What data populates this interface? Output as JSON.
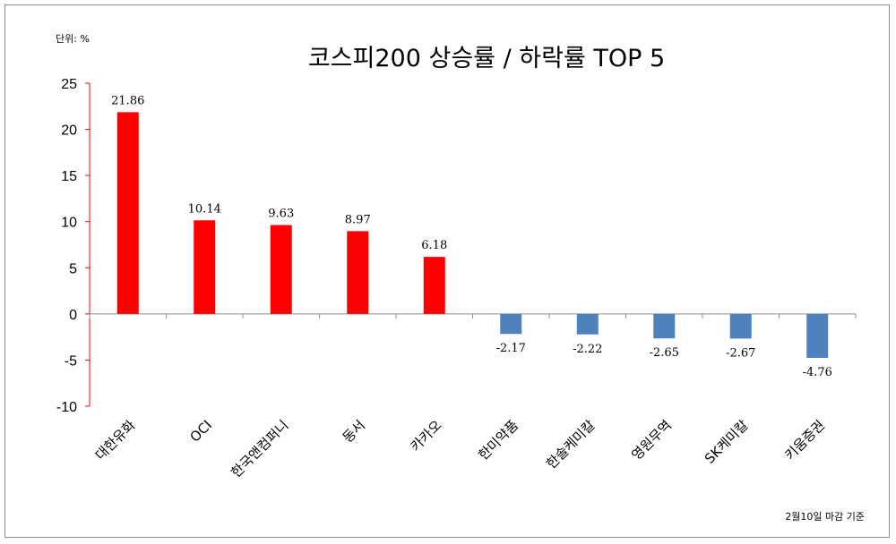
{
  "chart_data": {
    "type": "bar",
    "title": "코스피200 상승률 / 하락률  TOP 5",
    "unit_label": "단위: %",
    "note": "2월10일 마감 기준",
    "xlabel": "",
    "ylabel": "",
    "ylim": [
      -10,
      25
    ],
    "yticks": [
      25,
      20,
      15,
      10,
      5,
      0,
      -5,
      -10
    ],
    "grid": false,
    "legend": "none",
    "categories": [
      "대한유화",
      "OCI",
      "한국앤컴퍼니",
      "동서",
      "카카오",
      "한미약품",
      "한솔케미칼",
      "영원무역",
      "SK케미칼",
      "키움증권"
    ],
    "values": [
      21.86,
      10.14,
      9.63,
      8.97,
      6.18,
      -2.17,
      -2.22,
      -2.65,
      -2.67,
      -4.76
    ],
    "value_labels": [
      "21.86",
      "10.14",
      "9.63",
      "8.97",
      "6.18",
      "-2.17",
      "-2.22",
      "-2.65",
      "-2.67",
      "-4.76"
    ],
    "colors": {
      "positive": "#ff0000",
      "negative": "#4f81bd",
      "axis": "#ff0000",
      "axis_secondary": "#8c8c8c"
    }
  }
}
